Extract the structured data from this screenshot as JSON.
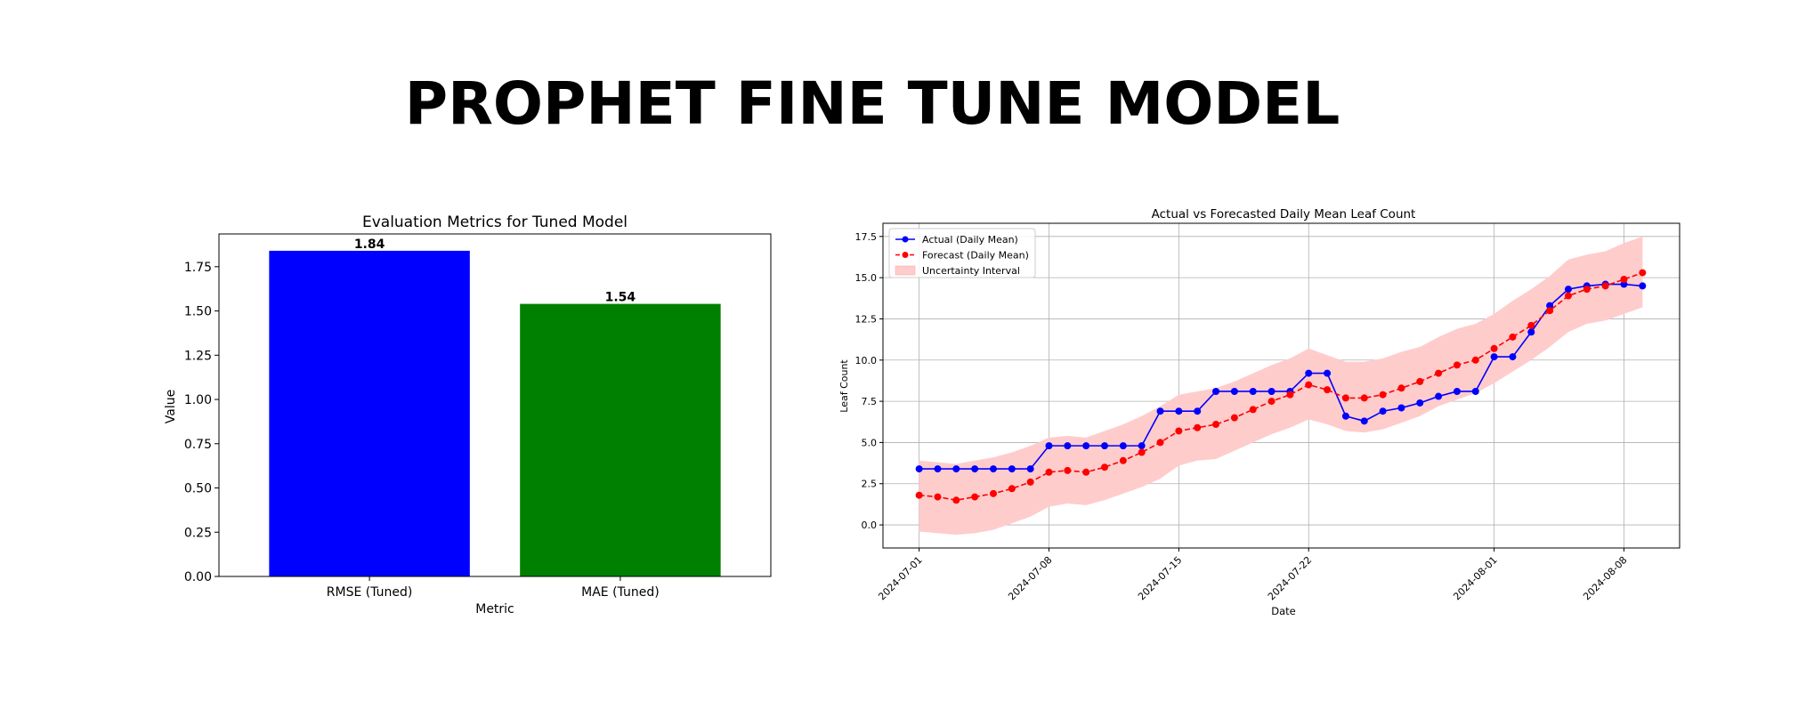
{
  "page": {
    "title": "PROPHET FINE TUNE MODEL"
  },
  "chart_data": [
    {
      "type": "bar",
      "title": "Evaluation Metrics for Tuned Model",
      "xlabel": "Metric",
      "ylabel": "Value",
      "categories": [
        "RMSE (Tuned)",
        "MAE (Tuned)"
      ],
      "values": [
        1.84,
        1.54
      ],
      "value_labels": [
        "1.84",
        "1.54"
      ],
      "colors": [
        "#0000ff",
        "#008000"
      ],
      "ylim": [
        0,
        1.935
      ],
      "yticks": [
        0,
        0.25,
        0.5,
        0.75,
        1.0,
        1.25,
        1.5,
        1.75
      ],
      "ytick_labels": [
        "0.00",
        "0.25",
        "0.50",
        "0.75",
        "1.00",
        "1.25",
        "1.50",
        "1.75"
      ],
      "grid": false
    },
    {
      "type": "line",
      "title": "Actual vs Forecasted Daily Mean Leaf Count",
      "xlabel": "Date",
      "ylabel": "Leaf Count",
      "x": [
        "2024-07-01",
        "2024-07-02",
        "2024-07-03",
        "2024-07-04",
        "2024-07-05",
        "2024-07-06",
        "2024-07-07",
        "2024-07-08",
        "2024-07-09",
        "2024-07-10",
        "2024-07-11",
        "2024-07-12",
        "2024-07-13",
        "2024-07-14",
        "2024-07-15",
        "2024-07-16",
        "2024-07-17",
        "2024-07-18",
        "2024-07-19",
        "2024-07-20",
        "2024-07-21",
        "2024-07-22",
        "2024-07-23",
        "2024-07-24",
        "2024-07-25",
        "2024-07-26",
        "2024-07-27",
        "2024-07-28",
        "2024-07-29",
        "2024-07-30",
        "2024-07-31",
        "2024-08-01",
        "2024-08-02",
        "2024-08-03",
        "2024-08-04",
        "2024-08-05",
        "2024-08-06",
        "2024-08-07",
        "2024-08-08",
        "2024-08-09"
      ],
      "series": [
        {
          "name": "Actual (Daily Mean)",
          "color": "#0000ff",
          "style": "solid",
          "values": [
            3.4,
            3.4,
            3.4,
            3.4,
            3.4,
            3.4,
            3.4,
            4.8,
            4.8,
            4.8,
            4.8,
            4.8,
            4.8,
            6.9,
            6.9,
            6.9,
            8.1,
            8.1,
            8.1,
            8.1,
            8.1,
            9.2,
            9.2,
            6.6,
            6.3,
            6.9,
            7.1,
            7.4,
            7.8,
            8.1,
            8.1,
            10.2,
            10.2,
            11.7,
            13.3,
            14.3,
            14.5,
            14.6,
            14.6,
            14.5
          ]
        },
        {
          "name": "Forecast (Daily Mean)",
          "color": "#ff0000",
          "style": "dashed",
          "values": [
            1.8,
            1.7,
            1.5,
            1.7,
            1.9,
            2.2,
            2.6,
            3.2,
            3.3,
            3.2,
            3.5,
            3.9,
            4.4,
            5.0,
            5.7,
            5.9,
            6.1,
            6.5,
            7.0,
            7.5,
            7.9,
            8.5,
            8.2,
            7.7,
            7.7,
            7.9,
            8.3,
            8.7,
            9.2,
            9.7,
            10.0,
            10.7,
            11.4,
            12.1,
            13.0,
            13.9,
            14.3,
            14.5,
            14.9,
            15.3
          ]
        }
      ],
      "band": {
        "name": "Uncertainty Interval",
        "color": "#ffcccc",
        "lower": [
          -0.4,
          -0.5,
          -0.6,
          -0.5,
          -0.3,
          0.1,
          0.5,
          1.1,
          1.3,
          1.2,
          1.5,
          1.9,
          2.3,
          2.8,
          3.6,
          3.9,
          4.0,
          4.5,
          5.0,
          5.5,
          5.9,
          6.4,
          6.1,
          5.7,
          5.6,
          5.8,
          6.2,
          6.6,
          7.2,
          7.6,
          8.0,
          8.6,
          9.3,
          10.0,
          10.8,
          11.7,
          12.2,
          12.4,
          12.8,
          13.2
        ],
        "upper": [
          3.9,
          3.8,
          3.7,
          3.9,
          4.1,
          4.4,
          4.8,
          5.3,
          5.4,
          5.3,
          5.7,
          6.1,
          6.6,
          7.2,
          7.9,
          8.1,
          8.3,
          8.7,
          9.2,
          9.7,
          10.1,
          10.7,
          10.3,
          9.9,
          9.9,
          10.1,
          10.5,
          10.8,
          11.4,
          11.9,
          12.2,
          12.8,
          13.6,
          14.3,
          15.1,
          16.1,
          16.4,
          16.6,
          17.1,
          17.5
        ]
      },
      "xticks": [
        "2024-07-01",
        "2024-07-08",
        "2024-07-15",
        "2024-07-22",
        "2024-08-01",
        "2024-08-08"
      ],
      "ylim": [
        -1.4,
        18.3
      ],
      "yticks": [
        0,
        2.5,
        5,
        7.5,
        10,
        12.5,
        15,
        17.5
      ],
      "ytick_labels": [
        "0.0",
        "2.5",
        "5.0",
        "7.5",
        "10.0",
        "12.5",
        "15.0",
        "17.5"
      ],
      "grid": true,
      "legend_position": "upper left"
    }
  ]
}
